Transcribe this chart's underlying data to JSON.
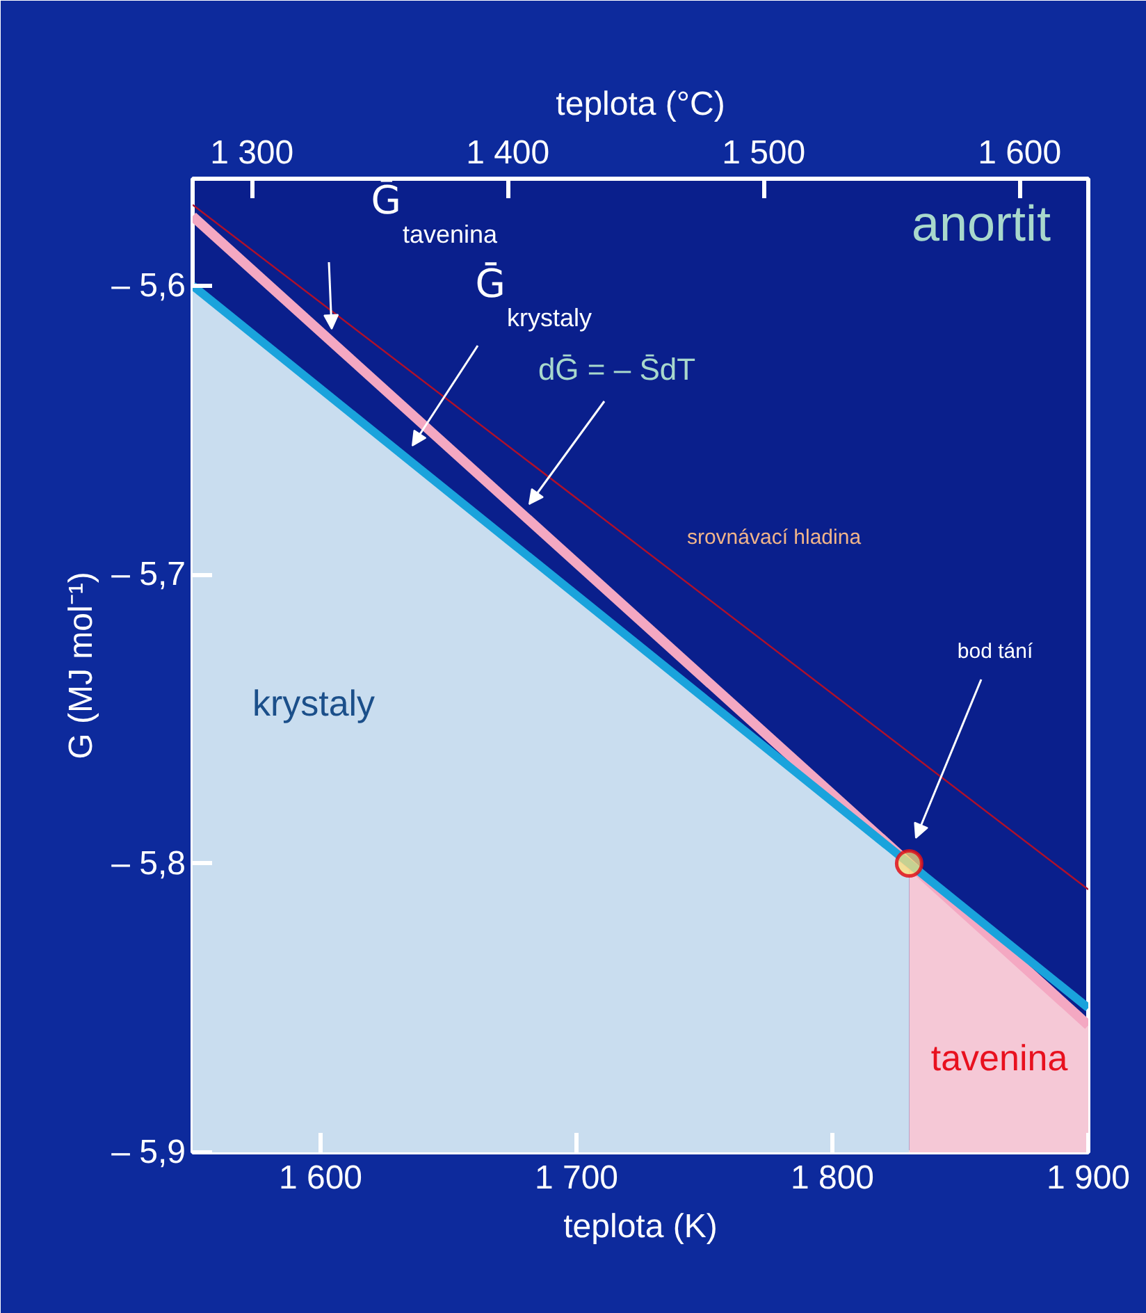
{
  "chart_data": {
    "type": "line",
    "xlabel": "teplota (K)",
    "x2label": "teplota (°C)",
    "ylabel": "G (MJ mol⁻¹)",
    "xlim": [
      1550,
      1900
    ],
    "xticks": [
      {
        "value": 1600,
        "label": "1 600"
      },
      {
        "value": 1700,
        "label": "1 700"
      },
      {
        "value": 1800,
        "label": "1 800"
      },
      {
        "value": 1900,
        "label": "1 900"
      }
    ],
    "x2lim": [
      1276.85,
      1626.85
    ],
    "x2ticks": [
      {
        "value": 1300,
        "label": "1 300"
      },
      {
        "value": 1400,
        "label": "1 400"
      },
      {
        "value": 1500,
        "label": "1 500"
      },
      {
        "value": 1600,
        "label": "1 600"
      }
    ],
    "ylim": [
      -5.9,
      -5.563
    ],
    "yticks": [
      {
        "value": -5.6,
        "label": "– 5,6"
      },
      {
        "value": -5.7,
        "label": "– 5,7"
      },
      {
        "value": -5.8,
        "label": "– 5,8"
      },
      {
        "value": -5.9,
        "label": "– 5,9"
      }
    ],
    "grid": false,
    "series": [
      {
        "type": "area",
        "color": "#c9ddef",
        "x": [
          1550,
          1550,
          1600,
          1650,
          1700,
          1750,
          1800,
          1830,
          1830
        ],
        "values": [
          -5.9,
          -5.6,
          -5.636,
          -5.671,
          -5.707,
          -5.743,
          -5.779,
          -5.8,
          -5.9
        ]
      },
      {
        "type": "area",
        "color": "#f5c8d6",
        "x": [
          1830,
          1830,
          1850,
          1875,
          1900,
          1900
        ],
        "values": [
          -5.9,
          -5.8,
          -5.816,
          -5.836,
          -5.856,
          -5.9
        ]
      },
      {
        "type": "line",
        "color": "#b0102a",
        "x": [
          1550,
          1900
        ],
        "values": [
          -5.572,
          -5.809
        ]
      },
      {
        "type": "line",
        "color": "#f4a8c2",
        "x": [
          1550,
          1900
        ],
        "values": [
          -5.576,
          -5.856
        ]
      },
      {
        "type": "line",
        "color": "#1aa3dc",
        "x": [
          1550,
          1900
        ],
        "values": [
          -5.6,
          -5.85
        ]
      },
      {
        "type": "scatter",
        "color": "#ffe07a",
        "x": [
          1830
        ],
        "values": [
          -5.8
        ]
      }
    ],
    "annotations": [
      "Ḡ$_{tavenina}$",
      "Ḡ$_{krystaly}$",
      "dḠ = – S̄dT",
      "bod tání",
      "anortit",
      "krystaly",
      "tavenina",
      "srovnávací hladina"
    ]
  }
}
